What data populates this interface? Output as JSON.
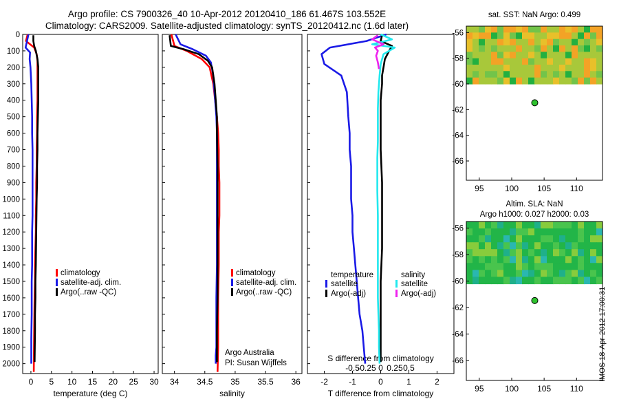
{
  "header": {
    "line1": "Argo profile: CS 7900326_40 10-Apr-2012 20120410_186 61.467S 103.552E",
    "line2": "Climatology: CARS2009. Satellite-adjusted climatology: synTS_20120412.nc (1.6d later)"
  },
  "stamp": "IMOS 18-Apr-2012 17:00:31",
  "colors": {
    "climatology": "#ff0000",
    "satellite": "#1a1ae6",
    "argo": "#000000",
    "sat_diff_s": "#22e8ee",
    "argo_diff_s": "#ee22ee"
  },
  "chart_data": [
    {
      "type": "line",
      "id": "temperature",
      "xlabel": "temperature (deg C)",
      "ylabel": "",
      "xlim": [
        -2,
        31
      ],
      "ylim": [
        2060,
        0
      ],
      "xticks": [
        0,
        5,
        10,
        15,
        20,
        25,
        30
      ],
      "xtick_labels": [
        "0",
        "5",
        "10",
        "15",
        "20",
        "25",
        "30"
      ],
      "yticks": [
        0,
        100,
        200,
        300,
        400,
        500,
        600,
        700,
        800,
        900,
        1000,
        1100,
        1200,
        1300,
        1400,
        1500,
        1600,
        1700,
        1800,
        1900,
        2000
      ],
      "legend": [
        "climatology",
        "satellite-adj. clim.",
        "Argo(..raw -QC)"
      ],
      "series": [
        {
          "name": "climatology",
          "x": [
            -0.8,
            -1.2,
            0.8,
            1.4,
            1.6,
            1.6,
            1.6,
            1.6,
            1.5,
            1.5,
            1.4,
            1.4,
            1.3,
            1.3,
            1.2,
            1.2,
            1.1,
            1.0,
            1.0,
            0.9,
            0.8,
            0.7
          ],
          "depth": [
            0,
            40,
            80,
            120,
            160,
            200,
            300,
            400,
            500,
            600,
            700,
            800,
            900,
            1000,
            1100,
            1200,
            1300,
            1400,
            1500,
            1600,
            1800,
            2050
          ]
        },
        {
          "name": "satellite-adj. clim.",
          "x": [
            -0.6,
            -1.3,
            -0.2,
            -0.3,
            -0.1,
            0.1,
            0.2,
            0.3,
            0.3,
            0.4,
            0.4,
            0.4,
            0.4,
            0.4,
            0.3,
            0.3,
            0.3,
            0.2,
            0.2,
            0.2,
            0.1,
            0.1
          ],
          "depth": [
            0,
            80,
            110,
            150,
            200,
            300,
            400,
            500,
            600,
            700,
            800,
            900,
            1000,
            1100,
            1200,
            1300,
            1400,
            1500,
            1600,
            1700,
            1850,
            2000
          ]
        },
        {
          "name": "Argo(..raw -QC)",
          "x": [
            0.6,
            0.6,
            0.8,
            1.2,
            1.6,
            1.8,
            1.8,
            1.8,
            1.7,
            1.6,
            1.6,
            1.5,
            1.5,
            1.4,
            1.3,
            1.2,
            1.1,
            1.1,
            1.0,
            1.0,
            0.9
          ],
          "depth": [
            5,
            40,
            70,
            100,
            150,
            200,
            300,
            400,
            500,
            600,
            700,
            800,
            900,
            1000,
            1200,
            1400,
            1500,
            1600,
            1700,
            1800,
            1990
          ]
        }
      ]
    },
    {
      "type": "line",
      "id": "salinity",
      "xlabel": "salinity",
      "xlim": [
        33.8,
        36.1
      ],
      "ylim": [
        2060,
        0
      ],
      "xticks": [
        34,
        34.5,
        35,
        35.5,
        36
      ],
      "xtick_labels": [
        "34",
        "34.5",
        "35",
        "35.5",
        "36"
      ],
      "legend": [
        "climatology",
        "satellite-adj. clim.",
        "Argo(..raw -QC)"
      ],
      "annotation": [
        "Argo Australia",
        "PI: Susan Wijffels"
      ],
      "series": [
        {
          "name": "climatology",
          "x": [
            33.95,
            34.0,
            34.2,
            34.45,
            34.58,
            34.64,
            34.67,
            34.7,
            34.72,
            34.73,
            34.73,
            34.74,
            34.74,
            34.74,
            34.73,
            34.73,
            34.72,
            34.72,
            34.72,
            34.71
          ],
          "depth": [
            0,
            70,
            100,
            150,
            200,
            300,
            400,
            500,
            600,
            700,
            800,
            900,
            1000,
            1100,
            1200,
            1400,
            1600,
            1800,
            1900,
            2050
          ]
        },
        {
          "name": "satellite-adj. clim.",
          "x": [
            34.02,
            34.1,
            34.3,
            34.52,
            34.6,
            34.64,
            34.67,
            34.69,
            34.7,
            34.7,
            34.7,
            34.7,
            34.7,
            34.69,
            34.69,
            34.69,
            34.68,
            34.68
          ],
          "depth": [
            0,
            60,
            90,
            130,
            170,
            250,
            400,
            500,
            600,
            800,
            1000,
            1200,
            1400,
            1600,
            1800,
            1900,
            1950,
            2000
          ]
        },
        {
          "name": "Argo(..raw -QC)",
          "x": [
            33.92,
            33.94,
            34.15,
            34.4,
            34.55,
            34.62,
            34.66,
            34.68,
            34.7,
            34.7,
            34.71,
            34.71,
            34.71,
            34.71,
            34.71,
            34.7,
            34.7
          ],
          "depth": [
            5,
            70,
            90,
            120,
            160,
            200,
            300,
            400,
            500,
            600,
            800,
            1000,
            1200,
            1400,
            1600,
            1800,
            1990
          ]
        }
      ]
    },
    {
      "type": "line",
      "id": "difference",
      "xlabel": "T difference from climatology",
      "x2label": "S difference from climatology",
      "xlim": [
        -2.6,
        2.6
      ],
      "ylim": [
        2060,
        0
      ],
      "xticks": [
        -2,
        -1,
        0,
        1,
        2
      ],
      "xtick_labels": [
        "-2",
        "-1",
        "0",
        "1",
        "2"
      ],
      "x2ticks": [
        -0.5,
        -0.25,
        0,
        0.25,
        0.5
      ],
      "x2tick_labels": [
        "-0.5",
        "-0.25",
        "0",
        "0.25",
        "0.5"
      ],
      "legend_groups": [
        "temperature",
        "salinity"
      ],
      "legend": [
        "satellite",
        "Argo(-adj)",
        "satellite",
        "Argo(-adj)"
      ],
      "series": [
        {
          "name": "temperature satellite",
          "x": [
            0.2,
            -0.5,
            -1.8,
            -2.1,
            -2.0,
            -1.4,
            -1.2,
            -1.15,
            -1.1,
            -1.1,
            -1.05,
            -1.05,
            -1.05,
            -1.0,
            -1.0,
            -0.95,
            -0.9,
            -0.85,
            -0.8,
            -0.75,
            -0.65,
            -0.6,
            -0.55
          ],
          "depth": [
            0,
            40,
            80,
            120,
            180,
            250,
            350,
            500,
            600,
            700,
            800,
            900,
            1000,
            1100,
            1200,
            1300,
            1400,
            1500,
            1600,
            1700,
            1800,
            1900,
            2000
          ]
        },
        {
          "name": "temperature Argo(-adj)",
          "x": [
            0.05,
            0.0,
            0.4,
            0.3,
            0.15,
            0.1,
            0.05,
            0.05,
            0.0,
            0.0,
            0.0,
            0.05,
            0.05,
            0.05,
            0.0,
            0.0,
            0.0
          ],
          "depth": [
            5,
            40,
            70,
            100,
            150,
            200,
            250,
            300,
            400,
            500,
            700,
            900,
            1100,
            1300,
            1500,
            1800,
            1990
          ]
        },
        {
          "name": "salinity satellite",
          "x": [
            0.0,
            0.2,
            -0.15,
            0.25,
            0.05,
            0.0,
            -0.02,
            -0.04,
            -0.05,
            -0.05,
            -0.05,
            -0.06,
            -0.06,
            -0.06,
            -0.05,
            -0.05,
            -0.05,
            -0.05,
            -0.04,
            -0.03,
            -0.03,
            -0.02
          ],
          "depth": [
            0,
            30,
            60,
            80,
            120,
            180,
            250,
            350,
            450,
            550,
            650,
            750,
            850,
            950,
            1100,
            1300,
            1500,
            1600,
            1700,
            1800,
            1900,
            2000
          ]
        },
        {
          "name": "salinity Argo(-adj)",
          "x": [
            -0.05,
            -0.15,
            0.05,
            -0.1,
            -0.05,
            -0.08,
            -0.05,
            -0.03
          ],
          "depth": [
            5,
            30,
            60,
            80,
            100,
            130,
            170,
            210
          ]
        }
      ]
    },
    {
      "type": "heatmap",
      "id": "sst",
      "title": "sat. SST: NaN Argo: 0.499",
      "xlim": [
        93,
        114
      ],
      "ylim": [
        -67.5,
        -55.5
      ],
      "xticks": [
        95,
        100,
        105,
        110
      ],
      "xtick_labels": [
        "95",
        "100",
        "105",
        "110"
      ],
      "yticks": [
        -56,
        -58,
        -60,
        -62,
        -64,
        -66
      ],
      "ytick_labels": [
        "-56",
        "-58",
        "-60",
        "-62",
        "-64",
        "-66"
      ],
      "data_lat_range": [
        -60,
        -55.5
      ],
      "point": {
        "lon": 103.552,
        "lat": -61.467
      }
    },
    {
      "type": "heatmap",
      "id": "sla",
      "title_line1": "Altim. SLA: NaN",
      "title_line2": "Argo h1000: 0.027 h2000: 0.03",
      "xlim": [
        93,
        114
      ],
      "ylim": [
        -67.5,
        -55.5
      ],
      "xticks": [
        95,
        100,
        105,
        110
      ],
      "xtick_labels": [
        "95",
        "100",
        "105",
        "110"
      ],
      "yticks": [
        -56,
        -58,
        -60,
        -62,
        -64,
        -66
      ],
      "ytick_labels": [
        "-56",
        "-58",
        "-60",
        "-62",
        "-64",
        "-66"
      ],
      "data_lat_range": [
        -60.2,
        -55.5
      ],
      "point": {
        "lon": 103.552,
        "lat": -61.467
      }
    }
  ]
}
